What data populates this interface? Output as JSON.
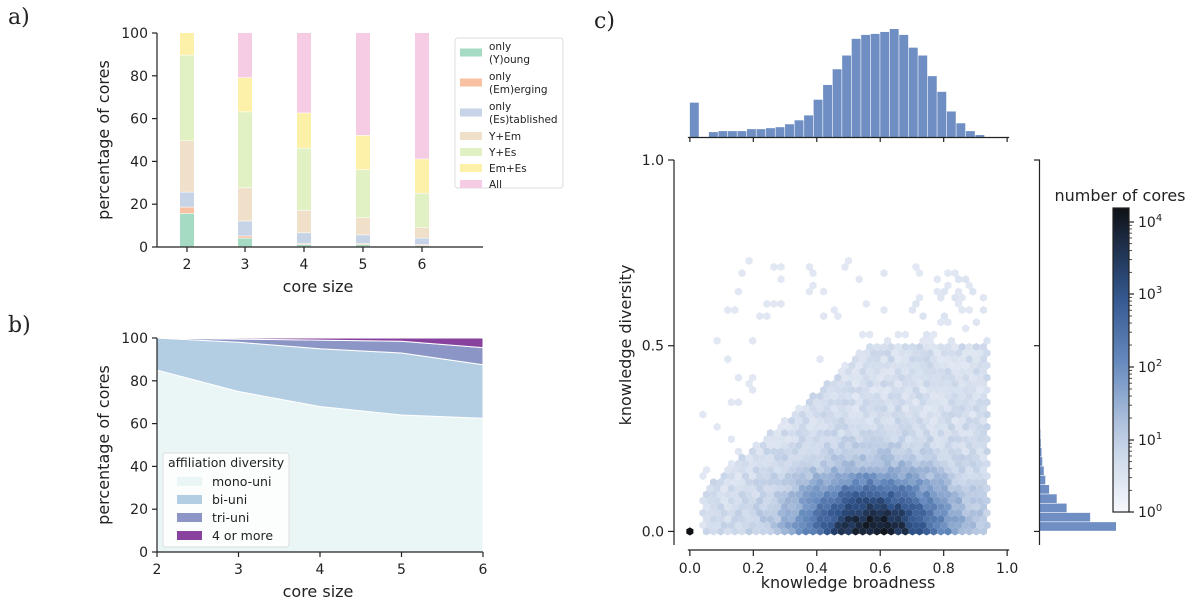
{
  "chart_data": [
    {
      "panel": "a)",
      "type": "bar",
      "stacked": true,
      "categories": [
        "2",
        "3",
        "4",
        "5",
        "6"
      ],
      "xlabel": "core size",
      "ylabel": "percentage of cores",
      "ylim": [
        0,
        100
      ],
      "yticks": [
        "0",
        "20",
        "40",
        "60",
        "80",
        "100"
      ],
      "legend_position": "right",
      "series": [
        {
          "name": "only\n(Y)oung",
          "lines": [
            "only",
            "(Y)oung"
          ],
          "color": "#a6dbc3",
          "values": [
            15.5,
            4,
            1,
            1,
            0.5
          ]
        },
        {
          "name": "only\n(Em)erging",
          "lines": [
            "only",
            "(Em)erging"
          ],
          "color": "#f7c1a2",
          "values": [
            3,
            1,
            0.5,
            0.5,
            0.5
          ]
        },
        {
          "name": "only\n(Es)tablished",
          "lines": [
            "only",
            "(Es)tablished"
          ],
          "color": "#c7d3e6",
          "values": [
            7,
            7,
            5,
            4,
            3
          ]
        },
        {
          "name": "Y+Em",
          "lines": [
            "Y+Em"
          ],
          "color": "#f0dfc9",
          "values": [
            24,
            15.5,
            10.5,
            8,
            5
          ]
        },
        {
          "name": "Y+Es",
          "lines": [
            "Y+Es"
          ],
          "color": "#e2f1c3",
          "values": [
            40,
            35.5,
            29,
            22.5,
            16
          ]
        },
        {
          "name": "Em+Es",
          "lines": [
            "Em+Es"
          ],
          "color": "#fdf0a8",
          "values": [
            10.5,
            16,
            16.5,
            16,
            16
          ]
        },
        {
          "name": "All",
          "lines": [
            "All"
          ],
          "color": "#f6cbe4",
          "values": [
            0,
            21,
            37.5,
            48,
            59
          ]
        }
      ]
    },
    {
      "panel": "b)",
      "type": "area",
      "stacked": true,
      "x": [
        2,
        3,
        4,
        5,
        6
      ],
      "xlabel": "core size",
      "ylabel": "percentage of cores",
      "xlim": [
        2,
        6
      ],
      "ylim": [
        0,
        100
      ],
      "xticks": [
        "2",
        "3",
        "4",
        "5",
        "6"
      ],
      "yticks": [
        "0",
        "20",
        "40",
        "60",
        "80",
        "100"
      ],
      "legend_title": "affiliation diversity",
      "legend_position": "lower left",
      "series": [
        {
          "name": "mono-uni",
          "color": "#eaf5f6",
          "values": [
            85,
            75,
            68,
            64,
            62.5
          ]
        },
        {
          "name": "bi-uni",
          "color": "#b3cde3",
          "values": [
            15,
            23,
            27,
            29,
            25
          ]
        },
        {
          "name": "tri-uni",
          "color": "#8c96c6",
          "values": [
            0,
            1.5,
            4,
            5.5,
            8
          ]
        },
        {
          "name": "4 or more",
          "color": "#88419d",
          "values": [
            0,
            0.5,
            1,
            1.5,
            4.5
          ]
        }
      ]
    },
    {
      "panel": "c)",
      "type": "heatmap",
      "subtype": "hexbin with marginal histograms",
      "xlabel": "knowledge broadness",
      "ylabel": "knowledge diversity",
      "xlim": [
        -0.05,
        1.05
      ],
      "ylim": [
        -0.05,
        1.0
      ],
      "xticks": [
        "0.0",
        "0.2",
        "0.4",
        "0.6",
        "0.8",
        "1.0"
      ],
      "yticks": [
        "0.0",
        "0.5",
        "1.0"
      ],
      "colorbar_label": "number of cores",
      "colorbar_scale": "log",
      "colorbar_ticks": [
        "10",
        "10",
        "10",
        "10",
        "10"
      ],
      "colorbar_exponents": [
        "0",
        "1",
        "2",
        "3",
        "4"
      ],
      "top_histogram": {
        "bins": [
          0.0,
          0.03,
          0.06,
          0.09,
          0.12,
          0.15,
          0.18,
          0.21,
          0.24,
          0.27,
          0.3,
          0.33,
          0.36,
          0.39,
          0.42,
          0.45,
          0.48,
          0.51,
          0.54,
          0.57,
          0.6,
          0.63,
          0.66,
          0.69,
          0.72,
          0.75,
          0.78,
          0.81,
          0.84,
          0.87,
          0.9
        ],
        "counts": [
          35,
          0,
          5,
          6,
          6,
          6,
          8,
          8,
          9,
          10,
          13,
          17,
          22,
          38,
          53,
          69,
          83,
          100,
          104,
          105,
          107,
          110,
          104,
          91,
          83,
          62,
          46,
          26,
          14,
          6,
          2
        ]
      },
      "right_histogram": {
        "bins": [
          0.0,
          0.025,
          0.05,
          0.075,
          0.1,
          0.125,
          0.15,
          0.175,
          0.2,
          0.225,
          0.25
        ],
        "counts": [
          100,
          66,
          35,
          22,
          12,
          7,
          5,
          3,
          2,
          1,
          0.5
        ]
      }
    }
  ]
}
